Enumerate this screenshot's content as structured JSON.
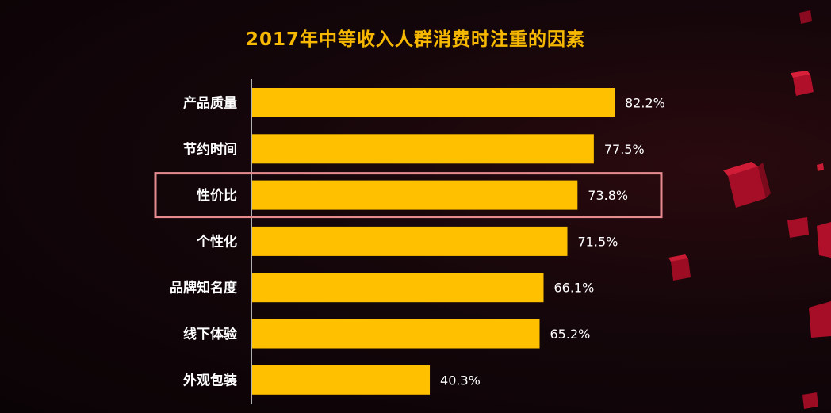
{
  "chart_data": {
    "type": "bar",
    "orientation": "horizontal",
    "title": "2017年中等收入人群消费时注重的因素",
    "categories": [
      "产品质量",
      "节约时间",
      "性价比",
      "个性化",
      "品牌知名度",
      "线下体验",
      "外观包装"
    ],
    "values": [
      82.2,
      77.5,
      73.8,
      71.5,
      66.1,
      65.2,
      40.3
    ],
    "value_labels": [
      "82.2%",
      "77.5%",
      "73.8%",
      "71.5%",
      "66.1%",
      "65.2%",
      "40.3%"
    ],
    "highlighted_category": "性价比",
    "xlim": [
      0,
      100
    ],
    "bar_color": "#ffc000",
    "highlight_color": "#e58a8f",
    "title_color": "#f6b800"
  }
}
